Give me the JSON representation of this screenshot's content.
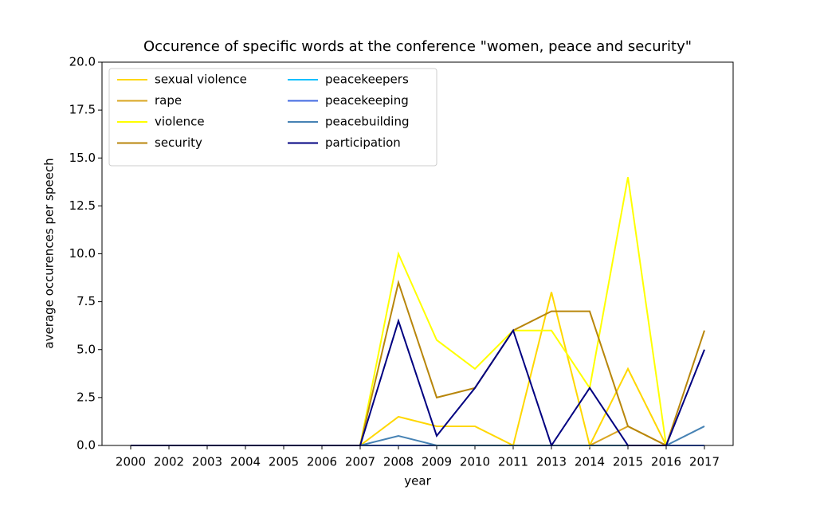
{
  "chart_data": {
    "type": "line",
    "title": "Occurence of specific words at the conference \"women, peace and security\"",
    "xlabel": "year",
    "ylabel": "average occurences per speech",
    "categories": [
      "2000",
      "2002",
      "2003",
      "2004",
      "2005",
      "2006",
      "2007",
      "2008",
      "2009",
      "2010",
      "2011",
      "2013",
      "2014",
      "2015",
      "2016",
      "2017"
    ],
    "ylim": [
      0,
      20
    ],
    "yticks": [
      {
        "value": 0,
        "label": "0.0"
      },
      2.5,
      {
        "value": 5,
        "label": "5.0"
      },
      7.5,
      {
        "value": 10,
        "label": "10.0"
      },
      12.5,
      {
        "value": 15,
        "label": "15.0"
      },
      17.5,
      {
        "value": 20,
        "label": "20.0"
      }
    ],
    "legend": "upper left",
    "series": [
      {
        "name": "sexual violence",
        "color": "#ffd700",
        "values": [
          0,
          0,
          0,
          0,
          0,
          0,
          0,
          1.5,
          1,
          1,
          0,
          8,
          0,
          4,
          0,
          0
        ]
      },
      {
        "name": "rape",
        "color": "#daa520",
        "values": [
          0,
          0,
          0,
          0,
          0,
          0,
          0,
          0,
          0,
          0,
          0,
          0,
          0,
          1,
          0,
          0
        ]
      },
      {
        "name": "violence",
        "color": "#ffff00",
        "values": [
          0,
          0,
          0,
          0,
          0,
          0,
          0,
          10,
          5.5,
          4,
          6,
          6,
          3,
          14,
          0,
          0
        ]
      },
      {
        "name": "security",
        "color": "#b8860b",
        "values": [
          0,
          0,
          0,
          0,
          0,
          0,
          0,
          8.5,
          2.5,
          3,
          6,
          7,
          7,
          1,
          0,
          6
        ]
      },
      {
        "name": "peacekeepers",
        "color": "#00bfff",
        "values": [
          0,
          0,
          0,
          0,
          0,
          0,
          0,
          0,
          0,
          0,
          0,
          0,
          0,
          0,
          0,
          0
        ]
      },
      {
        "name": "peacekeeping",
        "color": "#4169e1",
        "values": [
          0,
          0,
          0,
          0,
          0,
          0,
          0,
          0,
          0,
          0,
          0,
          0,
          0,
          0,
          0,
          0
        ]
      },
      {
        "name": "peacebuilding",
        "color": "#4682b4",
        "values": [
          0,
          0,
          0,
          0,
          0,
          0,
          0,
          0.5,
          0,
          0,
          0,
          0,
          0,
          0,
          0,
          1
        ]
      },
      {
        "name": "participation",
        "color": "#000080",
        "values": [
          0,
          0,
          0,
          0,
          0,
          0,
          0,
          6.5,
          0.5,
          3,
          6,
          0,
          3,
          0,
          0,
          5
        ]
      }
    ]
  }
}
